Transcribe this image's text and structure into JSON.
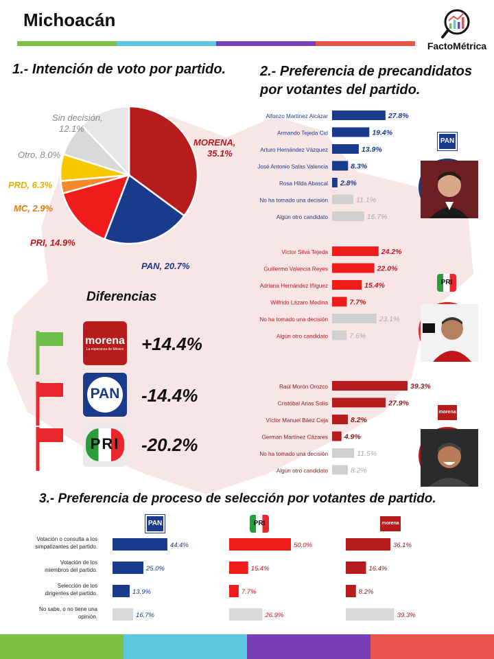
{
  "header": {
    "title": "Michoacán",
    "brand": "FactoMétrica",
    "strip_colors": [
      "#7dc142",
      "#5bc8e0",
      "#7a3fb8",
      "#e9534a"
    ]
  },
  "sections": {
    "s1_title": "1.- Intención de voto por partido.",
    "s2_title_line1": "2.- Preferencia de precandidatos",
    "s2_title_line2": "por votantes del partido.",
    "s3_title": "3.- Preferencia de proceso de selección por votantes de partido.",
    "diff_title": "Diferencias"
  },
  "differences": [
    {
      "party": "MORENA",
      "flag_color": "#6cc04a",
      "value": "+14.4%"
    },
    {
      "party": "PAN",
      "flag_color": "#e8262c",
      "value": "-14.4%"
    },
    {
      "party": "PRI",
      "flag_color": "#e8262c",
      "value": "-20.2%"
    }
  ],
  "party_logos": {
    "morena_text": "morena",
    "morena_sub": "La esperanza de México",
    "pan_text": "PAN",
    "pri_text": "PRI"
  },
  "bottom_strip_colors": [
    "#7dc142",
    "#5bc8e0",
    "#7a3fb8",
    "#e9534a"
  ],
  "chart_data": [
    {
      "type": "pie",
      "title": "1.- Intención de voto por partido.",
      "slices": [
        {
          "label": "MORENA",
          "value": 35.1,
          "display": "MORENA,\n35.1%",
          "color": "#b71c1c",
          "label_color": "#b71c1c"
        },
        {
          "label": "PAN",
          "value": 20.7,
          "display": "PAN, 20.7%",
          "color": "#1a3a8c",
          "label_color": "#1a3a8c"
        },
        {
          "label": "PRI",
          "value": 14.9,
          "display": "PRI, 14.9%",
          "color": "#f01c1c",
          "label_color": "#c0151a"
        },
        {
          "label": "MC",
          "value": 2.9,
          "display": "MC, 2.9%",
          "color": "#f28b2d",
          "label_color": "#e07b12"
        },
        {
          "label": "PRD",
          "value": 6.3,
          "display": "PRD, 6.3%",
          "color": "#f7c800",
          "label_color": "#e0b000"
        },
        {
          "label": "Otro",
          "value": 8.0,
          "display": "Otro, 8.0%",
          "color": "#d9d9d9",
          "label_color": "#888888"
        },
        {
          "label": "Sin decisión",
          "value": 12.1,
          "display": "Sin decisión,\n12.1%",
          "color": "#e6e6e6",
          "label_color": "#888888"
        }
      ]
    },
    {
      "type": "bar",
      "title": "PAN",
      "orientation": "horizontal",
      "color": "#1a3a8c",
      "categories": [
        "Alfonzo Martínez Alcázar",
        "Armando Tejeda Cid",
        "Arturo Hernández Vázquez",
        "José Antonio Salas Valencia",
        "Rosa Hilda Abascal",
        "No ha tomado una decisión",
        "Algún otro candidato"
      ],
      "values": [
        27.8,
        19.4,
        13.9,
        8.3,
        2.8,
        11.1,
        16.7
      ],
      "labels": [
        "27.8%",
        "19.4%",
        "13.9%",
        "8.3%",
        "2.8%",
        "11.1%",
        "16.7%"
      ],
      "muted": [
        false,
        false,
        false,
        false,
        false,
        true,
        true
      ]
    },
    {
      "type": "bar",
      "title": "PRI",
      "orientation": "horizontal",
      "color": "#f01c1c",
      "categories": [
        "Víctor Silva Tejeda",
        "Guillermo Valencia Reyes",
        "Adriana Hernández Iñiguez",
        "Wilfrido Lázaro Medina",
        "No ha tomado una decisión",
        "Algún otro candidato"
      ],
      "values": [
        24.2,
        22.0,
        15.4,
        7.7,
        23.1,
        7.6
      ],
      "labels": [
        "24.2%",
        "22.0%",
        "15.4%",
        "7.7%",
        "23.1%",
        "7.6%"
      ],
      "muted": [
        false,
        false,
        false,
        false,
        true,
        true
      ]
    },
    {
      "type": "bar",
      "title": "MORENA",
      "orientation": "horizontal",
      "color": "#b71c1c",
      "categories": [
        "Raúl Morón Orozco",
        "Cristóbal Arias Solís",
        "Víctor Manuel Báez Ceja",
        "German Martínez Cázares",
        "No ha tomado una decisión",
        "Algún otro candidato"
      ],
      "values": [
        39.3,
        27.9,
        8.2,
        4.9,
        11.5,
        8.2
      ],
      "labels": [
        "39.3%",
        "27.9%",
        "8.2%",
        "4.9%",
        "11.5%",
        "8.2%"
      ],
      "muted": [
        false,
        false,
        false,
        false,
        true,
        true
      ]
    },
    {
      "type": "bar",
      "title": "3.- Preferencia de proceso de selección por votantes de partido.",
      "orientation": "horizontal",
      "categories": [
        "Votación o  consulta a los simpatizantes del partido.",
        "Votación de los miembros del partido.",
        "Selección de los dirigentes del partido.",
        "No sabe, o no tiene una opinión."
      ],
      "series": [
        {
          "name": "PAN",
          "color": "#1a3a8c",
          "values": [
            44.4,
            25.0,
            13.9,
            16.7
          ],
          "labels": [
            "44.4%",
            "25.0%",
            "13.9%",
            "16.7%"
          ]
        },
        {
          "name": "PRI",
          "color": "#f01c1c",
          "values": [
            50.0,
            15.4,
            7.7,
            26.9
          ],
          "labels": [
            "50.0%",
            "15.4%",
            "7.7%",
            "26.9%"
          ]
        },
        {
          "name": "MORENA",
          "color": "#b71c1c",
          "values": [
            36.1,
            16.4,
            8.2,
            39.3
          ],
          "labels": [
            "36.1%",
            "16.4%",
            "8.2%",
            "39.3%"
          ]
        }
      ]
    }
  ]
}
